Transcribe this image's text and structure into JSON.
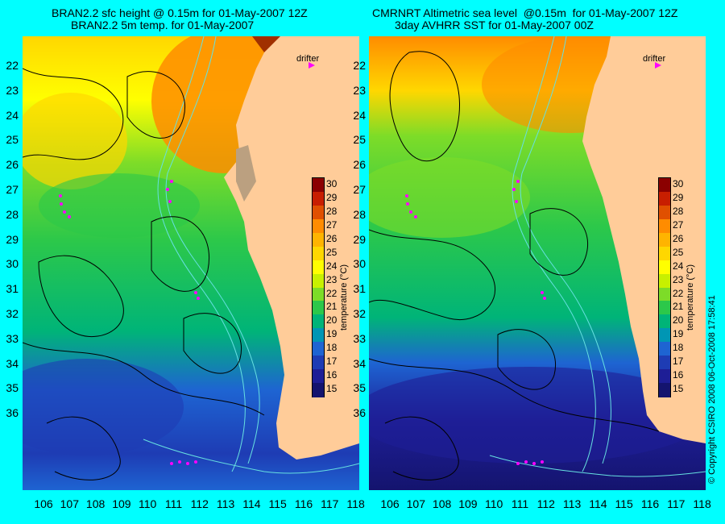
{
  "titles": {
    "left_line1": "BRAN2.2 sfc height @ 0.15m for 01-May-2007 12Z",
    "left_line2": "BRAN2.2 5m temp. for 01-May-2007",
    "right_line1": "CMRNRT Altimetric sea level  @0.15m  for 01-May-2007 12Z",
    "right_line2": "3day AVHRR SST for 01-May-2007 00Z"
  },
  "axes": {
    "x_ticks": [
      "106",
      "107",
      "108",
      "109",
      "110",
      "111",
      "112",
      "113",
      "114",
      "115",
      "116",
      "117",
      "118"
    ],
    "y_ticks": [
      "22",
      "23",
      "24",
      "25",
      "26",
      "27",
      "28",
      "29",
      "30",
      "31",
      "32",
      "33",
      "34",
      "35",
      "36"
    ]
  },
  "drifter_label": "drifter",
  "colorbar": {
    "title": "temperature (°C)",
    "ticks": [
      "30",
      "29",
      "28",
      "27",
      "26",
      "25",
      "24",
      "23",
      "22",
      "21",
      "20",
      "19",
      "18",
      "17",
      "16",
      "15"
    ],
    "colors": [
      "#8b0000",
      "#c81e00",
      "#e05000",
      "#ff8c00",
      "#ffb400",
      "#ffd700",
      "#ffff00",
      "#c8f000",
      "#7ddc28",
      "#2cc84a",
      "#00b478",
      "#0096b4",
      "#1e64d2",
      "#1e3cb4",
      "#1e1e96",
      "#14146e"
    ]
  },
  "copyright": "© Copyright CSIRO 2008   06-Oct-2008 17:58:41",
  "colors": {
    "background": "#00ffff",
    "land": "#ffcc99",
    "drifter_track": "#ff00ff",
    "isobath": "#66e0e0",
    "contour": "#000000"
  }
}
